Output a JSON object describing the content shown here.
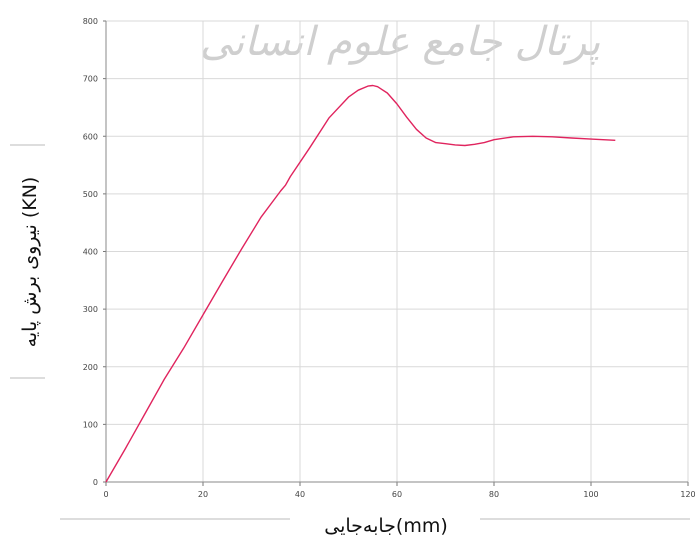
{
  "chart_data": {
    "type": "line",
    "title": "",
    "xlabel": "جابه‌جایی(mm)",
    "ylabel": "نیروی برش پایه (KN)",
    "xlim": [
      0,
      120
    ],
    "ylim": [
      0,
      800
    ],
    "xticks": [
      "0",
      "20",
      "40",
      "60",
      "80",
      "100",
      "120"
    ],
    "yticks": [
      "0",
      "100",
      "200",
      "300",
      "400",
      "500",
      "600",
      "700",
      "800"
    ],
    "grid": true,
    "legend": "none",
    "series": [
      {
        "color": "#e0245e",
        "x": [
          0,
          4,
          8,
          12,
          16,
          20,
          24,
          28,
          32,
          36,
          37,
          38,
          42,
          46,
          50,
          52,
          54,
          55,
          56,
          58,
          60,
          62,
          64,
          66,
          68,
          70,
          72,
          74,
          76,
          78,
          80,
          84,
          88,
          92,
          96,
          100,
          105
        ],
        "y": [
          0,
          58,
          118,
          178,
          232,
          290,
          348,
          405,
          460,
          505,
          515,
          530,
          580,
          632,
          668,
          680,
          687,
          688,
          686,
          675,
          656,
          633,
          612,
          597,
          589,
          587,
          585,
          584,
          586,
          589,
          594,
          599,
          600,
          599,
          597,
          595,
          593
        ]
      }
    ]
  },
  "watermark": "پرتال جامع علوم انسانی"
}
